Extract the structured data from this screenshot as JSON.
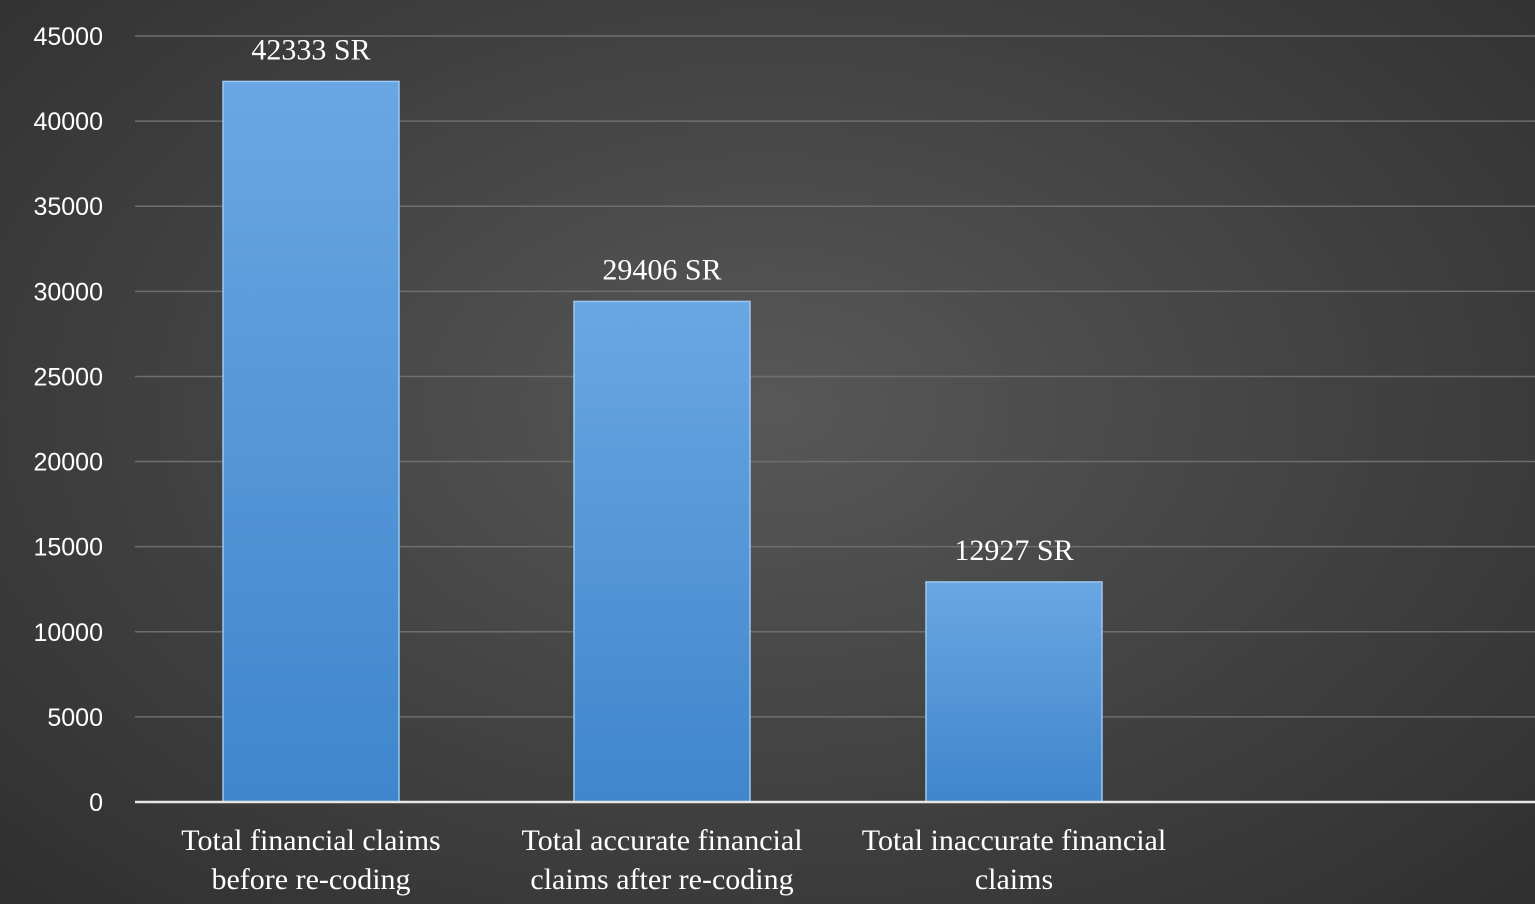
{
  "chart_data": {
    "type": "bar",
    "categories": [
      [
        "Total financial claims",
        "before re-coding"
      ],
      [
        "Total accurate financial",
        "claims after re-coding"
      ],
      [
        "Total inaccurate financial",
        "claims"
      ]
    ],
    "values": [
      42333,
      29406,
      12927
    ],
    "data_labels": [
      "42333 SR",
      "29406 SR",
      "12927 SR"
    ],
    "title": "",
    "xlabel": "",
    "ylabel": "",
    "ylim": [
      0,
      45000
    ],
    "yticks": [
      "0",
      "5000",
      "10000",
      "15000",
      "20000",
      "25000",
      "30000",
      "35000",
      "40000",
      "45000"
    ],
    "grid": true,
    "legend": "none",
    "colors": {
      "bar_top": "#6aa6e3",
      "bar_bottom": "#3f86cc",
      "bar_edge": "#9cc7f0",
      "background": "#3a3a3a",
      "text": "#ffffff"
    }
  }
}
